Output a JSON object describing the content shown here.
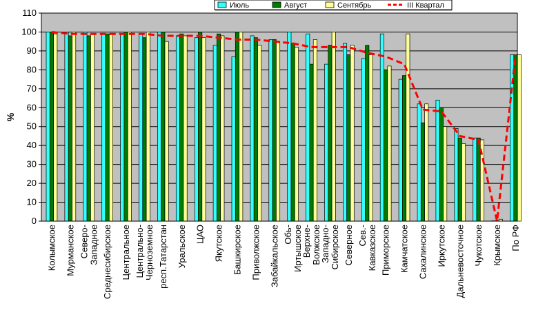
{
  "chart_data": {
    "type": "bar",
    "title": "",
    "xlabel": "",
    "ylabel": "%",
    "ylim": [
      0,
      110
    ],
    "yticks": [
      0,
      10,
      20,
      30,
      40,
      50,
      60,
      70,
      80,
      90,
      100,
      110
    ],
    "grid": "horizontal",
    "legend_position": "top-right",
    "plot_background": "#c0c0c0",
    "categories": [
      "Колымское",
      "Мурманское",
      "Северо-Западное",
      "Среднесибирское",
      "Центральное",
      "Центрально-Черноземное",
      "респ.Татарстан",
      "Уральское",
      "ЦАО",
      "Якутское",
      "Башкирское",
      "Приволжское",
      "Забайкальское",
      "Обь-Иртышское",
      "Верхне-Волжское",
      "Западно-Сибирское",
      "Северное",
      "Сев.-Кавказское",
      "Приморское",
      "Камчатское",
      "Сахалинское",
      "Иркутское",
      "Дальневосточное",
      "Чукотское",
      "Крымское",
      "По РФ"
    ],
    "category_label_lines": [
      [
        "Колымское"
      ],
      [
        "Мурманское"
      ],
      [
        "Северо-",
        "Западное"
      ],
      [
        "Среднесибирское"
      ],
      [
        "Центральное"
      ],
      [
        "Центрально-",
        "Черноземное"
      ],
      [
        "респ.Татарстан"
      ],
      [
        "Уральское"
      ],
      [
        "ЦАО"
      ],
      [
        "Якутское"
      ],
      [
        "Башкирское"
      ],
      [
        "Приволжское"
      ],
      [
        "Забайкальское"
      ],
      [
        "Обь-",
        "Иртышское"
      ],
      [
        "Верхне-",
        "Волжское"
      ],
      [
        "Западно-",
        "Сибирское"
      ],
      [
        "Северное"
      ],
      [
        "Сев.-",
        "Кавказское"
      ],
      [
        "Приморское"
      ],
      [
        "Камчатское"
      ],
      [
        "Сахалинское"
      ],
      [
        "Иркутское"
      ],
      [
        "Дальневосточное"
      ],
      [
        "Чукотское"
      ],
      [
        "Крымское"
      ],
      [
        "По РФ"
      ]
    ],
    "series": [
      {
        "name": "Июль",
        "kind": "bar",
        "color": "#33ffff",
        "values": [
          100,
          100,
          100,
          99,
          99,
          99,
          100,
          98,
          97,
          93,
          87,
          98,
          96,
          100,
          99,
          83,
          94,
          86,
          99,
          75,
          62,
          64,
          49,
          44,
          0,
          88
        ]
      },
      {
        "name": "Август",
        "kind": "bar",
        "color": "#007a00",
        "values": [
          100,
          98,
          98,
          99,
          100,
          97,
          100,
          99,
          100,
          99,
          100,
          97,
          96,
          94,
          83,
          93,
          88,
          93,
          80,
          77,
          52,
          60,
          44,
          44,
          0,
          88
        ]
      },
      {
        "name": "Сентябрь",
        "kind": "bar",
        "color": "#ffff99",
        "values": [
          99,
          100,
          99,
          99,
          100,
          100,
          95,
          98,
          97,
          98,
          100,
          93,
          95,
          92,
          96,
          100,
          93,
          88,
          82,
          99,
          62,
          50,
          41,
          43,
          1,
          88
        ]
      },
      {
        "name": "III Квартал",
        "kind": "line",
        "color": "#ff0000",
        "values": [
          100,
          99,
          99,
          99,
          99,
          99,
          98,
          98,
          98,
          97,
          96,
          96,
          95,
          94,
          92,
          92,
          92,
          89,
          87,
          83,
          59,
          58,
          45,
          43,
          0,
          88
        ]
      }
    ]
  }
}
